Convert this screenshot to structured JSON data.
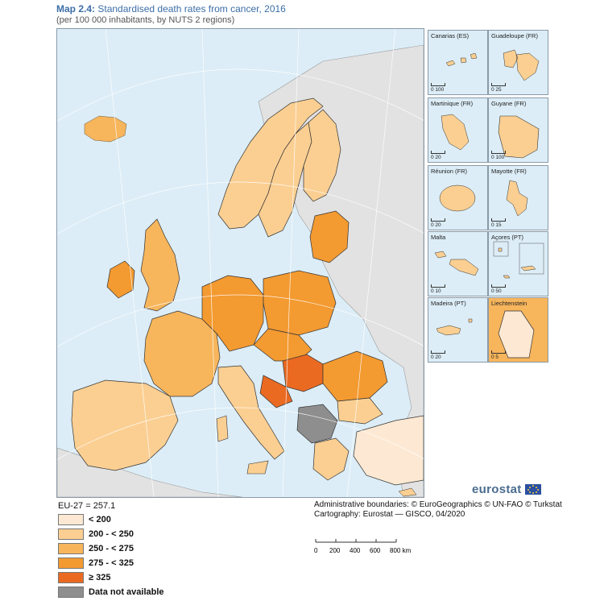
{
  "title": {
    "prefix": "Map 2.4:",
    "text": "Standardised death rates from cancer, 2016"
  },
  "subtitle": "(per 100 000 inhabitants, by NUTS 2 regions)",
  "legend": {
    "reference": "EU-27 = 257.1",
    "classes": [
      {
        "label": "< 200",
        "color": "#fde9d3"
      },
      {
        "label": "200 - < 250",
        "color": "#fbcf92"
      },
      {
        "label": "250 - < 275",
        "color": "#f7b55c"
      },
      {
        "label": "275 - < 325",
        "color": "#f39a31"
      },
      {
        "label": "≥ 325",
        "color": "#ea6a22"
      },
      {
        "label": "Data not available",
        "color": "#8e8e8e"
      }
    ]
  },
  "insets": [
    {
      "name": "Canarias (ES)",
      "scale": "0   100"
    },
    {
      "name": "Guadeloupe (FR)",
      "scale": "0   25"
    },
    {
      "name": "Martinique (FR)",
      "scale": "0   20"
    },
    {
      "name": "Guyane (FR)",
      "scale": "0   100"
    },
    {
      "name": "Réunion (FR)",
      "scale": "0   20"
    },
    {
      "name": "Mayotte (FR)",
      "scale": "0   15"
    },
    {
      "name": "Malta",
      "scale": "0   10"
    },
    {
      "name": "Açores (PT)",
      "scale": "0   50"
    },
    {
      "name": "Madeira (PT)",
      "scale": "0   20"
    },
    {
      "name": "Liechtenstein",
      "scale": "0   5"
    }
  ],
  "credits": {
    "line1": "Administrative boundaries: © EuroGeographics © UN-FAO © Turkstat",
    "line2": "Cartography: Eurostat — GISCO, 04/2020"
  },
  "scale": {
    "ticks": [
      "0",
      "200",
      "400",
      "600",
      "800 km"
    ]
  },
  "brand": "eurostat"
}
